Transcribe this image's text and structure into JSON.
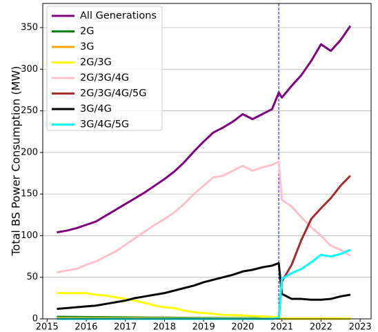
{
  "chart_data": {
    "type": "line",
    "ylabel": "Total BS Power Consumption (MW)",
    "x": [
      2015.25,
      2015.5,
      2015.75,
      2016,
      2016.25,
      2016.5,
      2016.75,
      2017,
      2017.25,
      2017.5,
      2017.75,
      2018,
      2018.25,
      2018.5,
      2018.75,
      2019,
      2019.25,
      2019.5,
      2019.75,
      2020,
      2020.25,
      2020.5,
      2020.75,
      2020.92,
      2021,
      2021.25,
      2021.5,
      2021.75,
      2022,
      2022.25,
      2022.5,
      2022.75
    ],
    "series": [
      {
        "name": "All Generations",
        "color": "#800080",
        "values": [
          104,
          106,
          109,
          113,
          117,
          124,
          131,
          138,
          145,
          152,
          160,
          168,
          177,
          188,
          201,
          213,
          224,
          230,
          237,
          246,
          240,
          246,
          252,
          272,
          266,
          280,
          293,
          310,
          330,
          322,
          335,
          352
        ]
      },
      {
        "name": "2G",
        "color": "#008000",
        "values": [
          2.5,
          2.4,
          2.3,
          2.2,
          2.1,
          2.0,
          1.9,
          1.8,
          1.7,
          1.6,
          1.5,
          1.4,
          1.3,
          1.2,
          1.1,
          1.0,
          1.0,
          0.9,
          0.9,
          0.8,
          0.8,
          0.7,
          0.7,
          0.7,
          0.3,
          0.3,
          0.3,
          0.3,
          0.3,
          0.3,
          0.3,
          0.3
        ]
      },
      {
        "name": "3G",
        "color": "#ffa500",
        "values": [
          1.0,
          1.0,
          1.0,
          0.9,
          0.9,
          0.9,
          0.8,
          0.8,
          0.8,
          0.7,
          0.7,
          0.7,
          0.6,
          0.6,
          0.6,
          0.5,
          0.5,
          0.5,
          0.5,
          0.4,
          0.4,
          0.4,
          0.4,
          0.4,
          0.2,
          0.2,
          0.2,
          0.2,
          0.2,
          0.2,
          0.2,
          0.2
        ]
      },
      {
        "name": "2G/3G",
        "color": "#ffff00",
        "values": [
          31,
          31,
          31,
          31,
          29,
          28,
          26,
          24,
          22,
          19,
          16,
          14,
          13,
          10,
          8,
          7,
          6,
          5,
          4.5,
          4,
          3.5,
          3,
          2.5,
          2,
          0.5,
          0.5,
          0.5,
          0.5,
          0.5,
          0.5,
          0.5,
          0.5
        ]
      },
      {
        "name": "2G/3G/4G",
        "color": "#ffc0cb",
        "values": [
          56,
          58,
          60,
          65,
          69,
          75,
          81,
          89,
          97,
          105,
          113,
          120,
          128,
          138,
          150,
          160,
          170,
          172,
          178,
          184,
          178,
          182,
          185,
          189,
          143,
          135,
          122,
          110,
          100,
          88,
          83,
          76
        ]
      },
      {
        "name": "2G/3G/4G/5G",
        "color": "#a52a2a",
        "values": [
          0,
          0,
          0,
          0,
          0,
          0,
          0,
          0,
          0,
          0,
          0,
          0,
          0,
          0,
          0,
          0,
          0,
          0,
          0,
          0,
          0,
          0,
          0,
          1,
          45,
          65,
          95,
          120,
          133,
          145,
          160,
          172
        ]
      },
      {
        "name": "3G/4G",
        "color": "#000000",
        "values": [
          12,
          13,
          14,
          15,
          16,
          18,
          20,
          22,
          25,
          27,
          29,
          31,
          34,
          37,
          40,
          44,
          47,
          50,
          53,
          57,
          59,
          62,
          64,
          67,
          30,
          24,
          24,
          23,
          23,
          24,
          27,
          29
        ]
      },
      {
        "name": "3G/4G/5G",
        "color": "#00ffff",
        "values": [
          0,
          0,
          0,
          0,
          0,
          0,
          0,
          0,
          0,
          0,
          0,
          0,
          0,
          0,
          0,
          0,
          0,
          0,
          0,
          0,
          0,
          0,
          0,
          1,
          48,
          55,
          60,
          68,
          77,
          75,
          78,
          83
        ]
      }
    ],
    "xlim": [
      2014.89,
      2023.28
    ],
    "ylim": [
      0,
      379
    ],
    "xticks": [
      2015,
      2016,
      2017,
      2018,
      2019,
      2020,
      2021,
      2022,
      2023
    ],
    "yticks": [
      0,
      50,
      100,
      150,
      200,
      250,
      300,
      350
    ],
    "grid": true,
    "legend": "upper left",
    "vline": {
      "x": 2020.92,
      "color": "#0000ff"
    }
  }
}
